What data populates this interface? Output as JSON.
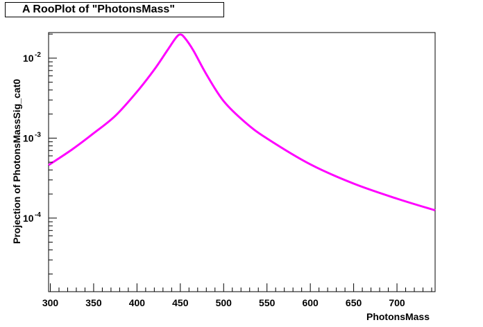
{
  "title": "A RooPlot of \"PhotonsMass\"",
  "chart_data": {
    "type": "line",
    "title": "A RooPlot of \"PhotonsMass\"",
    "xlabel": "PhotonsMass",
    "ylabel": "Projection of PhotonsMassSig_cat0",
    "xlim": [
      298,
      744
    ],
    "ylim_log10": [
      -4.92,
      -1.68
    ],
    "yscale": "log",
    "grid": false,
    "x_ticks": [
      "300",
      "350",
      "400",
      "450",
      "500",
      "550",
      "600",
      "650",
      "700"
    ],
    "y_ticks": [
      {
        "base": "10",
        "exp": "-2"
      },
      {
        "base": "10",
        "exp": "-3"
      },
      {
        "base": "10",
        "exp": "-4"
      }
    ],
    "series": [
      {
        "color": "#ff00ff",
        "x": [
          298,
          325,
          350,
          375,
          400,
          420,
          435,
          445,
          450,
          455,
          465,
          480,
          500,
          525,
          550,
          600,
          650,
          700,
          744
        ],
        "y": [
          0.00046,
          0.00072,
          0.00115,
          0.0019,
          0.0038,
          0.0072,
          0.0125,
          0.018,
          0.0198,
          0.018,
          0.0125,
          0.0063,
          0.0029,
          0.00157,
          0.00099,
          0.00047,
          0.00027,
          0.000175,
          0.000125
        ]
      }
    ]
  }
}
